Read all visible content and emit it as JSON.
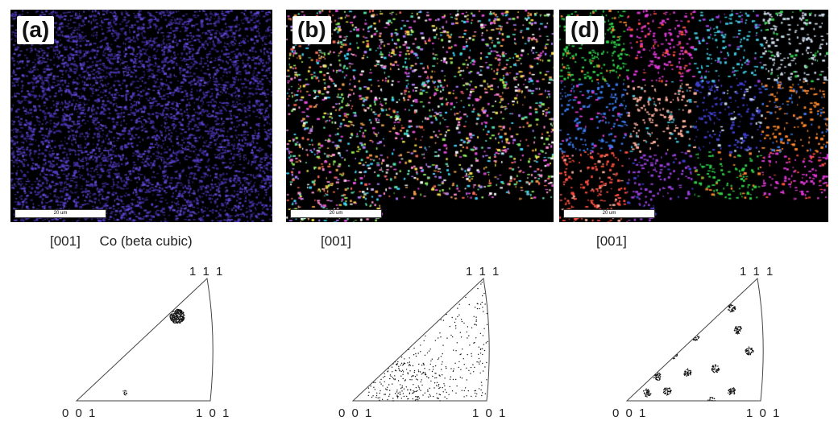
{
  "panels": [
    {
      "label": "(a)",
      "scale": "20 um",
      "palette": [
        "#5b3fd6",
        "#6a4df2",
        "#4e35b8",
        "#7a5cff",
        "#3f2fa0"
      ]
    },
    {
      "label": "(b)",
      "scale": "20 um",
      "palette": [
        "#e94fe0",
        "#f2e34a",
        "#ff8fd0",
        "#8ff05a",
        "#ffffff",
        "#3fd6ff",
        "#ff6a5a",
        "#f2a24a",
        "#b07cff",
        "#5ae0b0"
      ]
    },
    {
      "label": "(d)",
      "scale": "20 um",
      "palette": [
        "#2fd04a",
        "#ff8a30",
        "#3a7cf0",
        "#e03ad8",
        "#ff5040",
        "#ffb0a0",
        "#3fc8e0",
        "#9a40e0",
        "#4040d0",
        "#d0e0f0"
      ]
    }
  ],
  "ipf_headers": [
    "[001]",
    "[001]",
    "[001]"
  ],
  "ipf_material": "Co (beta cubic)",
  "corners": {
    "top": "1 1 1",
    "left": "0 0 1",
    "right": "1 0 1"
  }
}
